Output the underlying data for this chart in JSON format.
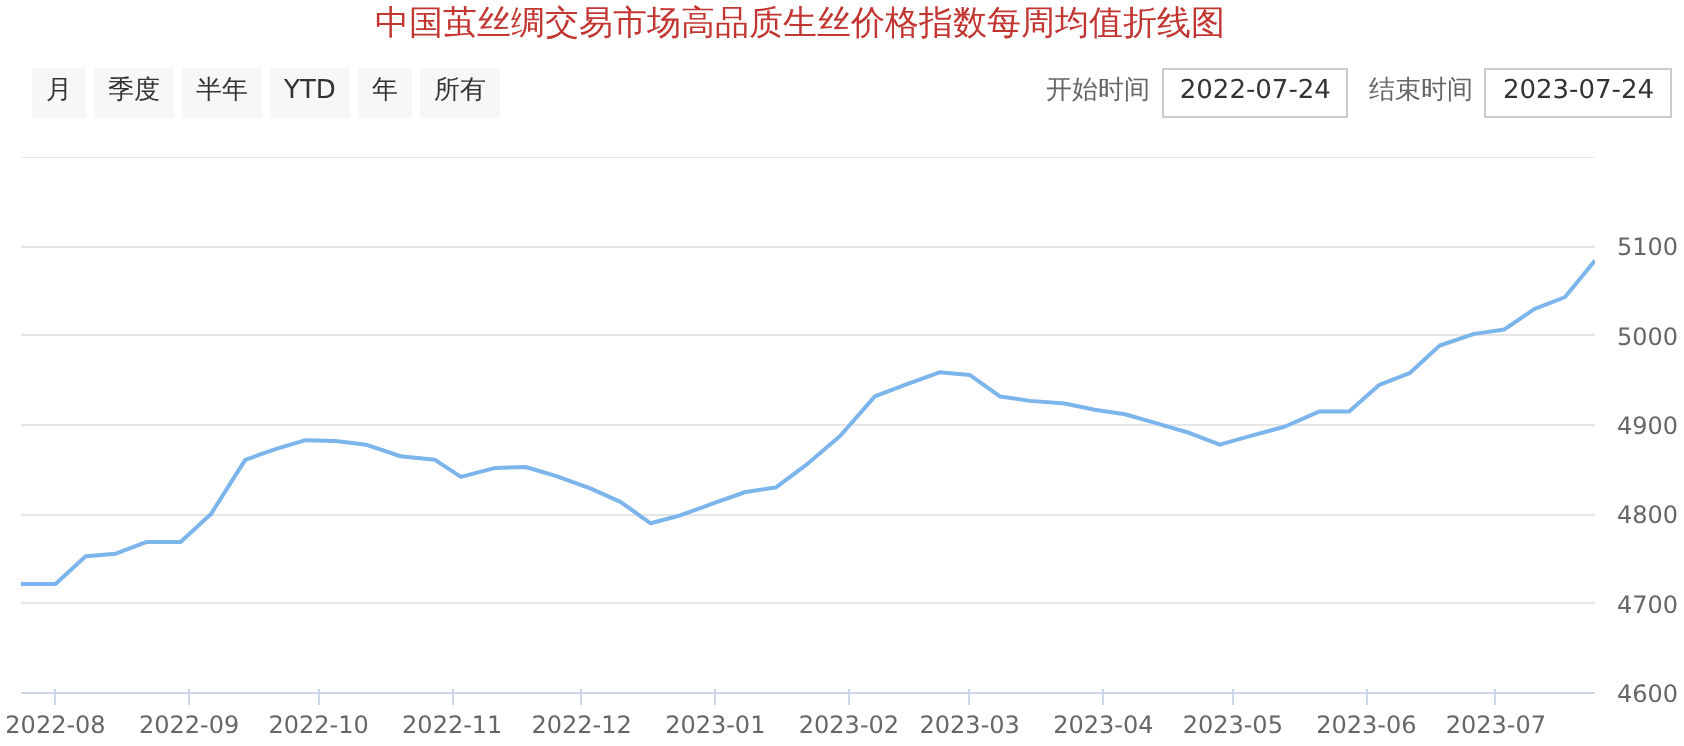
{
  "chart_data": {
    "type": "line",
    "title": "中国茧丝绸交易市场高品质生丝价格指数每周均值折线图",
    "annotations": [
      "月",
      "季度",
      "半年",
      "YTD",
      "年",
      "所有",
      "开始时间",
      "2022-07-24",
      "结束时间",
      "2023-07-24"
    ],
    "x": [
      "2022-07-24",
      "2022-08-01",
      "2022-08-08",
      "2022-08-15",
      "2022-08-22",
      "2022-08-30",
      "2022-09-06",
      "2022-09-14",
      "2022-09-21",
      "2022-09-28",
      "2022-10-05",
      "2022-10-12",
      "2022-10-20",
      "2022-10-28",
      "2022-11-03",
      "2022-11-11",
      "2022-11-18",
      "2022-11-25",
      "2022-12-03",
      "2022-12-10",
      "2022-12-17",
      "2022-12-24",
      "2023-01-01",
      "2023-01-08",
      "2023-01-15",
      "2023-01-22",
      "2023-01-30",
      "2023-02-07",
      "2023-02-14",
      "2023-02-22",
      "2023-03-01",
      "2023-03-08",
      "2023-03-15",
      "2023-03-23",
      "2023-03-30",
      "2023-04-06",
      "2023-04-14",
      "2023-04-21",
      "2023-04-28",
      "2023-05-06",
      "2023-05-13",
      "2023-05-21",
      "2023-05-28",
      "2023-06-04",
      "2023-06-11",
      "2023-06-18",
      "2023-06-26",
      "2023-07-03",
      "2023-07-10",
      "2023-07-17",
      "2023-07-24"
    ],
    "series": [
      {
        "color": "#7cb5ec",
        "values": [
          4722,
          4722,
          4753,
          4756,
          4769,
          4769,
          4800,
          4861,
          4873,
          4883,
          4882,
          4878,
          4865,
          4861,
          4842,
          4852,
          4853,
          4843,
          4829,
          4814,
          4790,
          4799,
          4813,
          4825,
          4830,
          4855,
          4888,
          4932,
          4945,
          4959,
          4956,
          4932,
          4927,
          4924,
          4917,
          4912,
          4901,
          4891,
          4878,
          4889,
          4898,
          4915,
          4915,
          4945,
          4958,
          4989,
          5002,
          5007,
          5030,
          5043,
          5084
        ]
      }
    ],
    "xlim": [
      "2022-07-24",
      "2023-07-24"
    ],
    "xticks": [
      {
        "value": "2022-08-01",
        "label": "2022-08"
      },
      {
        "value": "2022-09-01",
        "label": "2022-09"
      },
      {
        "value": "2022-10-01",
        "label": "2022-10"
      },
      {
        "value": "2022-11-01",
        "label": "2022-11"
      },
      {
        "value": "2022-12-01",
        "label": "2022-12"
      },
      {
        "value": "2023-01-01",
        "label": "2023-01"
      },
      {
        "value": "2023-02-01",
        "label": "2023-02"
      },
      {
        "value": "2023-03-01",
        "label": "2023-03"
      },
      {
        "value": "2023-04-01",
        "label": "2023-04"
      },
      {
        "value": "2023-05-01",
        "label": "2023-05"
      },
      {
        "value": "2023-06-01",
        "label": "2023-06"
      },
      {
        "value": "2023-07-01",
        "label": "2023-07"
      }
    ],
    "ylim": [
      4600,
      5200
    ],
    "yticks": [
      4600,
      4700,
      4800,
      4900,
      5000,
      5100,
      {
        "value": 5200,
        "label": null
      }
    ],
    "grid": "y"
  }
}
